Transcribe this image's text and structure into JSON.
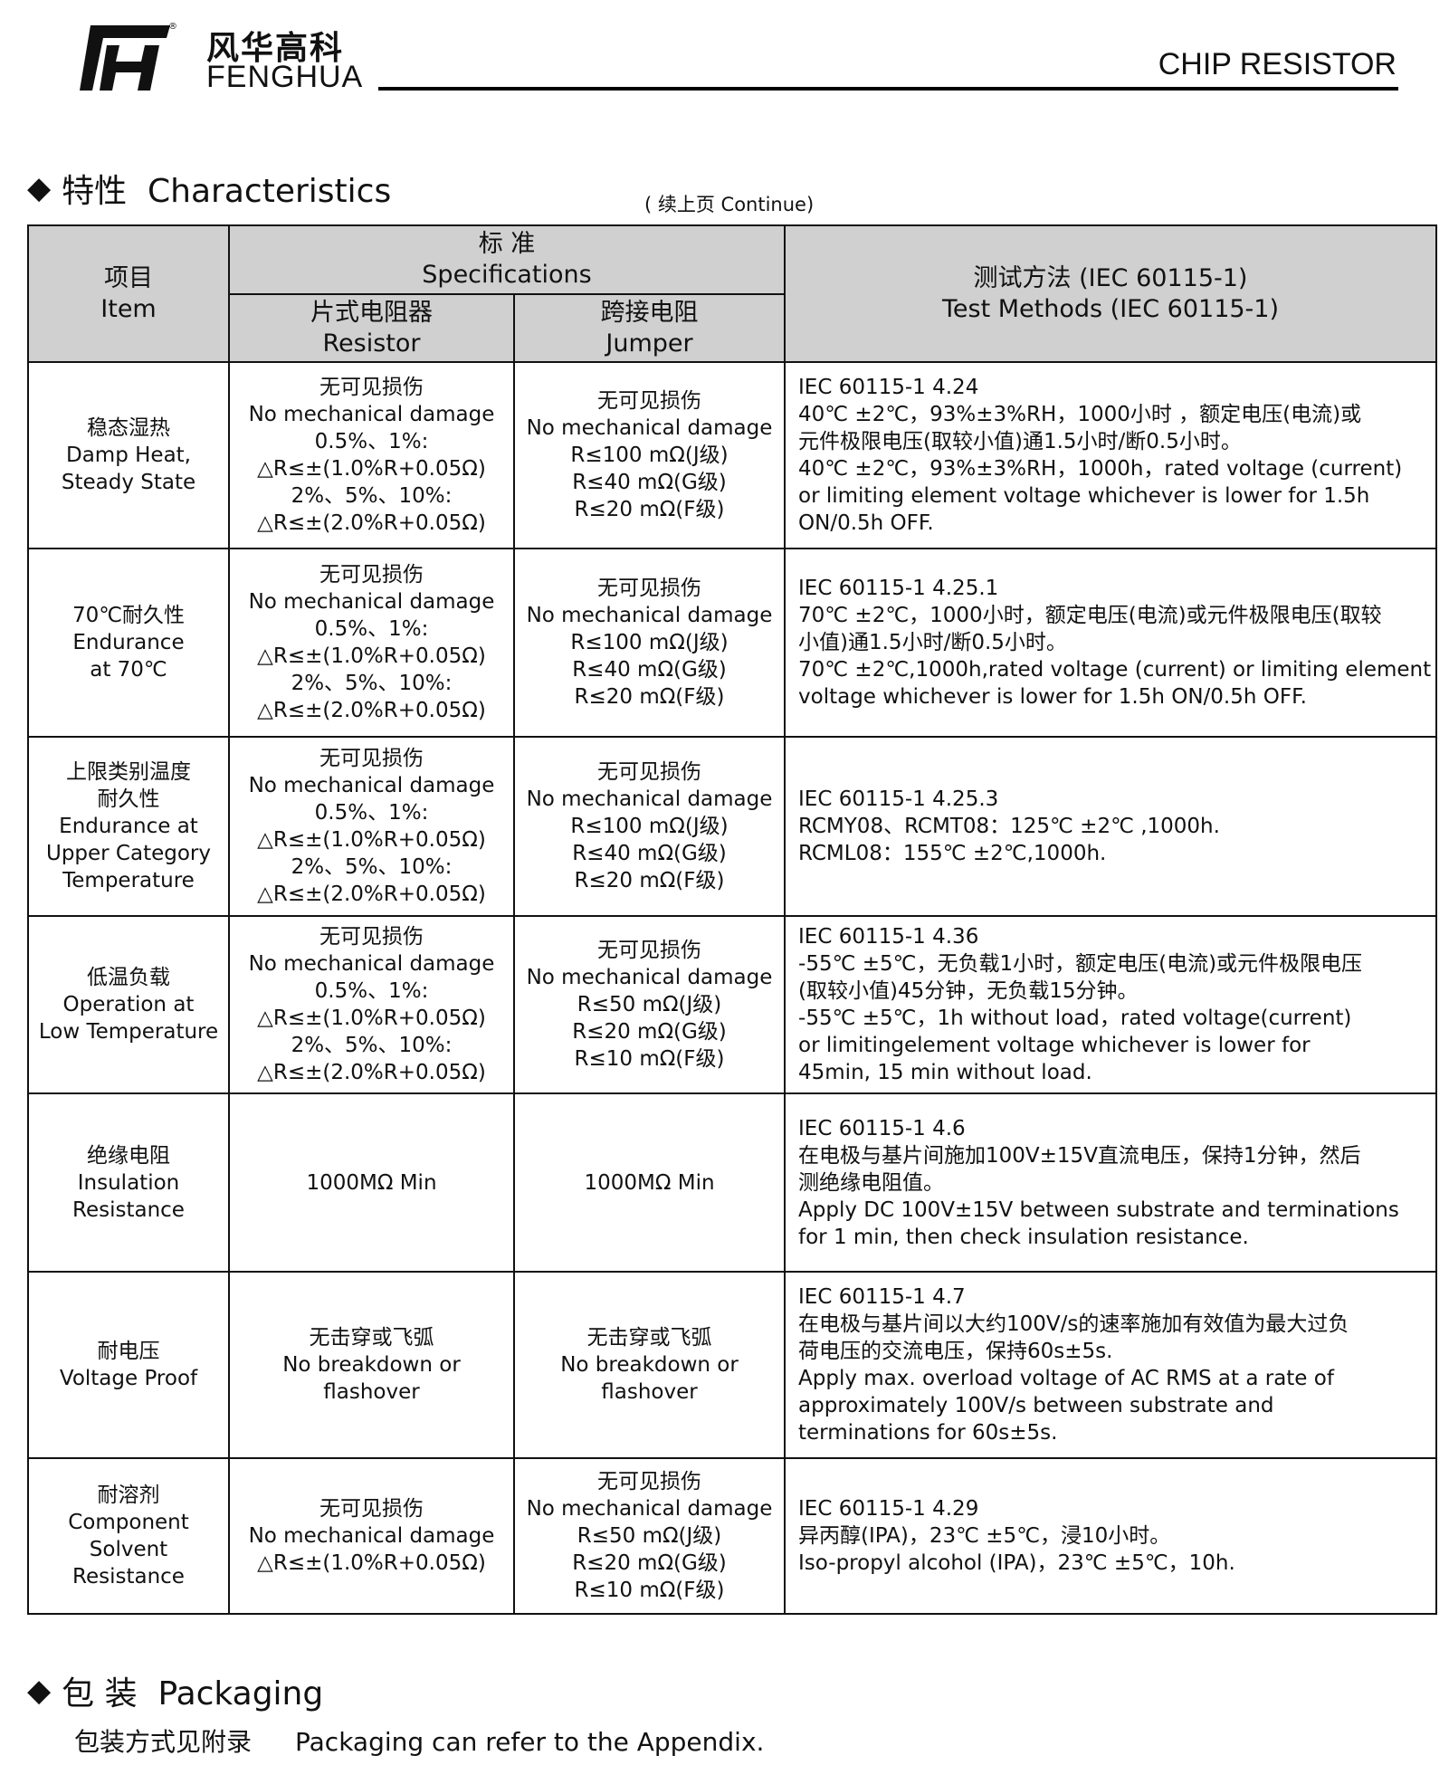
{
  "header": {
    "logo_cn": "风华高科",
    "logo_en": "FENGHUA",
    "title": "CHIP RESISTOR"
  },
  "characteristics": {
    "heading": "特性  Characteristics",
    "continue_note": "( 续上页 Continue)"
  },
  "table": {
    "head": {
      "item": [
        "项目",
        "Item"
      ],
      "spec": [
        "标 准",
        "Specifications"
      ],
      "resistor": [
        "片式电阻器",
        "Resistor"
      ],
      "jumper": [
        "跨接电阻",
        "Jumper"
      ],
      "method": [
        "测试方法 (IEC 60115-1)",
        "Test Methods (IEC 60115-1)"
      ]
    },
    "rows": [
      {
        "item": [
          "稳态湿热",
          "Damp Heat,",
          "Steady State"
        ],
        "resistor": [
          "无可见损伤",
          "No mechanical damage",
          "0.5%、1%:",
          "△R≤±(1.0%R+0.05Ω)",
          "2%、5%、10%:",
          "△R≤±(2.0%R+0.05Ω)"
        ],
        "jumper": [
          "无可见损伤",
          "No mechanical damage",
          "R≤100 mΩ(J级)",
          "R≤40 mΩ(G级)",
          "R≤20 mΩ(F级)"
        ],
        "method": [
          "IEC 60115-1 4.24",
          "40℃ ±2℃，93%±3%RH，1000小时 ，额定电压(电流)或",
          "元件极限电压(取较小值)通1.5小时/断0.5小时。",
          "40℃ ±2℃，93%±3%RH，1000h，rated voltage (current)",
          "or limiting element voltage whichever is lower for 1.5h",
          "ON/0.5h OFF."
        ]
      },
      {
        "item": [
          "70℃耐久性",
          "Endurance",
          "at 70℃"
        ],
        "resistor": [
          "无可见损伤",
          "No mechanical damage",
          "0.5%、1%:",
          "△R≤±(1.0%R+0.05Ω)",
          "2%、5%、10%:",
          "△R≤±(2.0%R+0.05Ω)"
        ],
        "jumper": [
          "无可见损伤",
          "No mechanical damage",
          "R≤100 mΩ(J级)",
          "R≤40 mΩ(G级)",
          "R≤20 mΩ(F级)"
        ],
        "method": [
          "IEC 60115-1 4.25.1",
          "70℃ ±2℃，1000小时，额定电压(电流)或元件极限电压(取较",
          "小值)通1.5小时/断0.5小时。",
          "70℃ ±2℃,1000h,rated voltage (current) or limiting element",
          " voltage whichever is lower for 1.5h ON/0.5h OFF."
        ]
      },
      {
        "item": [
          "上限类别温度",
          "耐久性",
          "Endurance at",
          "Upper Category",
          "Temperature"
        ],
        "resistor": [
          "无可见损伤",
          "No mechanical damage",
          "0.5%、1%:",
          "△R≤±(1.0%R+0.05Ω)",
          "2%、5%、10%:",
          "△R≤±(2.0%R+0.05Ω)"
        ],
        "jumper": [
          "无可见损伤",
          "No mechanical damage",
          "R≤100 mΩ(J级)",
          "R≤40 mΩ(G级)",
          "R≤20 mΩ(F级)"
        ],
        "method": [
          "IEC 60115-1 4.25.3",
          "RCMY08、RCMT08：125℃ ±2℃ ,1000h.",
          "RCML08：155℃ ±2℃,1000h."
        ]
      },
      {
        "item": [
          "低温负载",
          "Operation at",
          "Low Temperature"
        ],
        "resistor": [
          "无可见损伤",
          "No mechanical damage",
          "0.5%、1%:",
          "△R≤±(1.0%R+0.05Ω)",
          "2%、5%、10%:",
          "△R≤±(2.0%R+0.05Ω)"
        ],
        "jumper": [
          "无可见损伤",
          "No mechanical damage",
          "R≤50 mΩ(J级)",
          "R≤20 mΩ(G级)",
          "R≤10 mΩ(F级)"
        ],
        "method": [
          "IEC 60115-1 4.36",
          "-55℃ ±5℃，无负载1小时，额定电压(电流)或元件极限电压",
          "(取较小值)45分钟，无负载15分钟。",
          "-55℃ ±5℃，1h without load，rated voltage(current)",
          "or limitingelement voltage whichever is lower for",
          "45min, 15 min without load."
        ]
      },
      {
        "item": [
          "绝缘电阻",
          "Insulation",
          "Resistance"
        ],
        "resistor": [
          "1000MΩ  Min"
        ],
        "jumper": [
          "1000MΩ  Min"
        ],
        "method": [
          "IEC 60115-1 4.6",
          "在电极与基片间施加100V±15V直流电压，保持1分钟，然后",
          "测绝缘电阻值。",
          "Apply DC 100V±15V between substrate and terminations",
          "for 1 min, then check insulation resistance."
        ]
      },
      {
        "item": [
          "耐电压",
          "Voltage Proof"
        ],
        "resistor": [
          "无击穿或飞弧",
          "No breakdown or",
          "flashover"
        ],
        "jumper": [
          "无击穿或飞弧",
          "No breakdown or",
          "flashover"
        ],
        "method": [
          "IEC 60115-1 4.7",
          "在电极与基片间以大约100V/s的速率施加有效值为最大过负",
          "荷电压的交流电压，保持60s±5s.",
          "Apply max. overload voltage of AC RMS at a rate of",
          "approximately 100V/s between substrate and",
          "terminations for 60s±5s."
        ]
      },
      {
        "item": [
          "耐溶剂",
          "Component",
          "Solvent",
          "Resistance"
        ],
        "resistor": [
          "无可见损伤",
          "No mechanical damage",
          "△R≤±(1.0%R+0.05Ω)"
        ],
        "jumper": [
          "无可见损伤",
          "No mechanical damage",
          "R≤50 mΩ(J级)",
          "R≤20 mΩ(G级)",
          "R≤10 mΩ(F级)"
        ],
        "method": [
          "IEC 60115-1 4.29",
          "异丙醇(IPA)，23℃ ±5℃，浸10小时。",
          "Iso-propyl alcohol (IPA)，23℃ ±5℃，10h."
        ]
      }
    ]
  },
  "packaging": {
    "heading": "包 装  Packaging",
    "text_cn": "包装方式见附录",
    "text_en": "Packaging can refer to the Appendix."
  }
}
